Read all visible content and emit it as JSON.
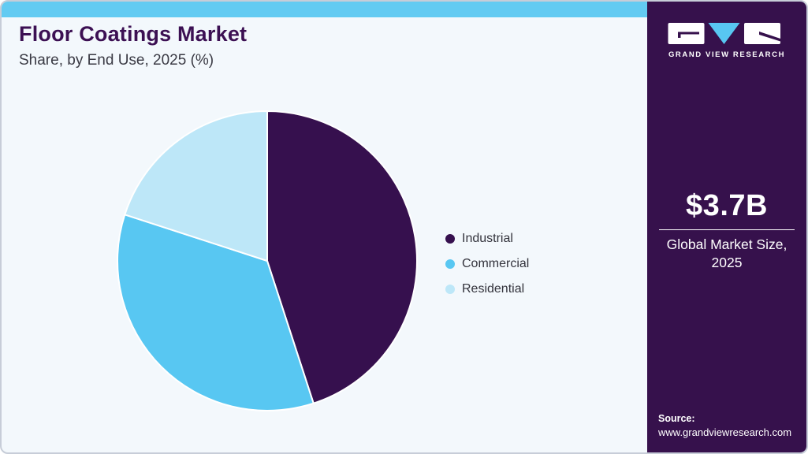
{
  "header": {
    "title": "Floor Coatings Market",
    "subtitle": "Share, by End Use, 2025 (%)"
  },
  "chart_data": {
    "type": "pie",
    "title": "Floor Coatings Market Share, by End Use, 2025 (%)",
    "categories": [
      "Industrial",
      "Commercial",
      "Residential"
    ],
    "values": [
      45,
      35,
      20
    ],
    "unit": "%",
    "colors": [
      "#36104e",
      "#58c7f2",
      "#bde7f8"
    ],
    "start_angle_deg": 0,
    "direction": "clockwise",
    "legend_position": "right",
    "slice_border_color": "#ffffff"
  },
  "legend": {
    "items": [
      {
        "label": "Industrial",
        "color": "#36104e"
      },
      {
        "label": "Commercial",
        "color": "#58c7f2"
      },
      {
        "label": "Residential",
        "color": "#bde7f8"
      }
    ]
  },
  "sidebar": {
    "brand": "GRAND VIEW RESEARCH",
    "metric_value": "$3.7B",
    "metric_label_line1": "Global Market Size,",
    "metric_label_line2": "2025",
    "source_label": "Source:",
    "source_url": "www.grandviewresearch.com"
  },
  "colors": {
    "sidebar_bg": "#36114c",
    "topbar": "#63cbf2",
    "card_bg": "#f3f8fc",
    "title_color": "#3c1053",
    "logo_triangle": "#58c7f2"
  }
}
